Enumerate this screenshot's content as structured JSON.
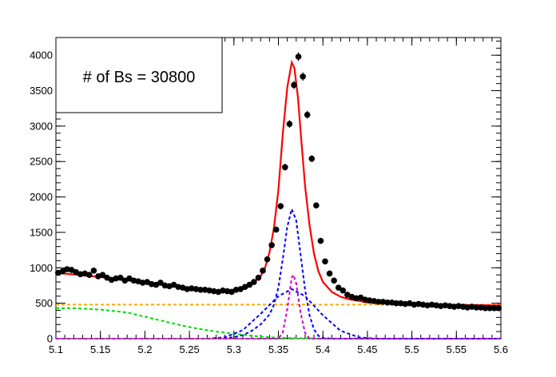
{
  "chart_data": {
    "type": "scatter",
    "title": "",
    "xlabel": "",
    "ylabel": "",
    "xlim": [
      5.1,
      5.6
    ],
    "ylim": [
      0,
      4250
    ],
    "x_ticks": [
      "5.1",
      "5.15",
      "5.2",
      "5.25",
      "5.3",
      "5.35",
      "5.4",
      "5.45",
      "5.5",
      "5.55",
      "5.6"
    ],
    "y_ticks": [
      "0",
      "500",
      "1000",
      "1500",
      "2000",
      "2500",
      "3000",
      "3500",
      "4000"
    ],
    "annotation": "# of Bs = 30800",
    "grid": false,
    "colors": {
      "data": "#000000",
      "total_fit": "#ff0000",
      "signal_main": "#0000ff",
      "signal_narrow": "#cc00cc",
      "signal_wide": "#0000ff",
      "combinatorial": "#ffaa00",
      "partial_reco": "#00dd00"
    },
    "series": [
      {
        "kind": "points",
        "x": [
          5.1025,
          5.1075,
          5.1125,
          5.1175,
          5.1225,
          5.1275,
          5.1325,
          5.1375,
          5.1425,
          5.1475,
          5.1525,
          5.1575,
          5.1625,
          5.1675,
          5.1725,
          5.1775,
          5.1825,
          5.1875,
          5.1925,
          5.1975,
          5.2025,
          5.2075,
          5.2125,
          5.2175,
          5.2225,
          5.2275,
          5.2325,
          5.2375,
          5.2425,
          5.2475,
          5.2525,
          5.2575,
          5.2625,
          5.2675,
          5.2725,
          5.2775,
          5.2825,
          5.2875,
          5.2925,
          5.2975,
          5.3025,
          5.3075,
          5.3125,
          5.3175,
          5.3225,
          5.3275,
          5.3325,
          5.3375,
          5.3425,
          5.3475,
          5.3525,
          5.3575,
          5.3625,
          5.3675,
          5.3725,
          5.3775,
          5.3825,
          5.3875,
          5.3925,
          5.3975,
          5.4025,
          5.4075,
          5.4125,
          5.4175,
          5.4225,
          5.4275,
          5.4325,
          5.4375,
          5.4425,
          5.4475,
          5.4525,
          5.4575,
          5.4625,
          5.4675,
          5.4725,
          5.4775,
          5.4825,
          5.4875,
          5.4925,
          5.4975,
          5.5025,
          5.5075,
          5.5125,
          5.5175,
          5.5225,
          5.5275,
          5.5325,
          5.5375,
          5.5425,
          5.5475,
          5.5525,
          5.5575,
          5.5625,
          5.5675,
          5.5725,
          5.5775,
          5.5825,
          5.5875,
          5.5925,
          5.5975
        ],
        "y": [
          930,
          950,
          980,
          970,
          940,
          910,
          920,
          900,
          960,
          880,
          900,
          860,
          830,
          850,
          860,
          820,
          850,
          820,
          810,
          790,
          800,
          770,
          760,
          790,
          750,
          740,
          760,
          730,
          720,
          700,
          710,
          700,
          690,
          690,
          680,
          670,
          660,
          680,
          670,
          660,
          690,
          700,
          730,
          760,
          800,
          860,
          960,
          1120,
          1320,
          1540,
          1870,
          2420,
          3030,
          3580,
          3980,
          3700,
          3160,
          2540,
          1880,
          1380,
          1090,
          920,
          820,
          720,
          680,
          620,
          590,
          570,
          580,
          550,
          540,
          530,
          520,
          520,
          510,
          510,
          500,
          500,
          490,
          500,
          480,
          490,
          480,
          470,
          480,
          470,
          460,
          470,
          460,
          450,
          460,
          450,
          440,
          450,
          440,
          440,
          430,
          430,
          430,
          430
        ]
      },
      {
        "kind": "line",
        "x": [
          5.1,
          5.15,
          5.2,
          5.25,
          5.28,
          5.3,
          5.31,
          5.32,
          5.33,
          5.335,
          5.34,
          5.345,
          5.35,
          5.355,
          5.36,
          5.365,
          5.368,
          5.372,
          5.375,
          5.38,
          5.385,
          5.39,
          5.395,
          5.4,
          5.41,
          5.42,
          5.43,
          5.44,
          5.45,
          5.47,
          5.5,
          5.55,
          5.6
        ],
        "y": [
          930,
          870,
          790,
          710,
          680,
          690,
          720,
          770,
          880,
          1000,
          1220,
          1560,
          2100,
          2900,
          3550,
          3900,
          3820,
          3400,
          2920,
          2150,
          1600,
          1200,
          950,
          800,
          660,
          590,
          555,
          535,
          510,
          500,
          490,
          475,
          470
        ]
      },
      {
        "kind": "dashed",
        "x": [
          5.1,
          5.28,
          5.3,
          5.31,
          5.32,
          5.33,
          5.34,
          5.345,
          5.35,
          5.355,
          5.36,
          5.365,
          5.37,
          5.375,
          5.38,
          5.385,
          5.39,
          5.395,
          5.4,
          5.41,
          5.44,
          5.6
        ],
        "y": [
          0,
          0,
          20,
          50,
          110,
          200,
          340,
          480,
          720,
          1130,
          1580,
          1830,
          1670,
          1180,
          690,
          330,
          130,
          40,
          10,
          0,
          0,
          0
        ]
      },
      {
        "kind": "dashed",
        "x": [
          5.1,
          5.35,
          5.355,
          5.36,
          5.365,
          5.367,
          5.37,
          5.375,
          5.38,
          5.385,
          5.6
        ],
        "y": [
          0,
          0,
          90,
          420,
          860,
          900,
          780,
          360,
          80,
          0,
          0
        ]
      },
      {
        "kind": "dashed",
        "x": [
          5.1,
          5.27,
          5.29,
          5.31,
          5.33,
          5.35,
          5.365,
          5.38,
          5.4,
          5.42,
          5.44,
          5.46,
          5.6
        ],
        "y": [
          0,
          0,
          20,
          120,
          350,
          600,
          700,
          600,
          330,
          110,
          20,
          0,
          0
        ]
      },
      {
        "kind": "dashed",
        "x": [
          5.1,
          5.6
        ],
        "y": [
          480,
          480
        ]
      },
      {
        "kind": "dashed",
        "x": [
          5.1,
          5.12,
          5.15,
          5.18,
          5.2,
          5.22,
          5.24,
          5.26,
          5.28,
          5.3,
          5.32,
          5.34,
          5.36,
          5.38,
          5.4,
          5.45,
          5.6
        ],
        "y": [
          430,
          430,
          410,
          370,
          310,
          250,
          190,
          140,
          100,
          70,
          40,
          20,
          10,
          5,
          0,
          0,
          0
        ]
      }
    ]
  }
}
